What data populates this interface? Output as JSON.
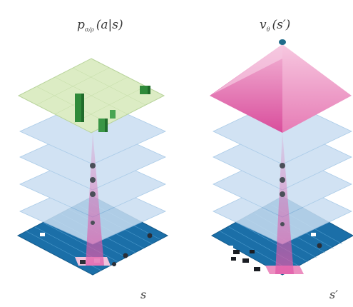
{
  "left_panel": {
    "title_main": "p",
    "title_sub": "σ/ρ",
    "title_args": "(a|s)",
    "state_label": "s"
  },
  "right_panel": {
    "title_main": "v",
    "title_sub": "θ",
    "title_args": "(s′)",
    "state_label": "s′"
  },
  "colors": {
    "board": "#1b6fa8",
    "board_line": "#5aa6d6",
    "hidden_layer": "#c9def1",
    "policy_layer": "#dcecc4",
    "policy_bars": "#2f8a3a",
    "value_pyramid": "#e05aa8",
    "dots": "#4a4f58"
  },
  "icons": [
    "policy-bar-icon",
    "value-pyramid-icon",
    "stone-icon"
  ]
}
